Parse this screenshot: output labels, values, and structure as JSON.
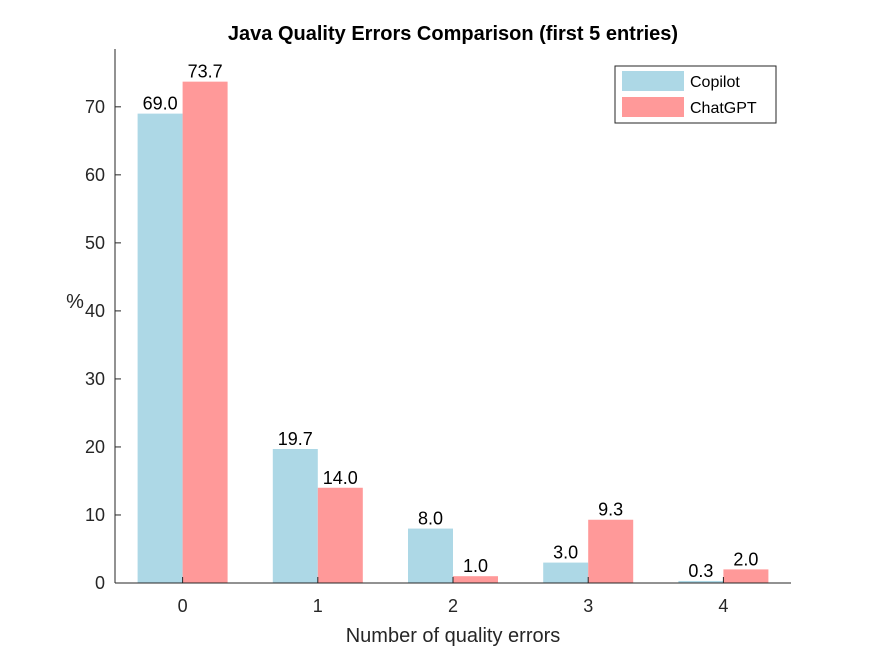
{
  "chart_data": {
    "type": "bar",
    "title": "Java Quality Errors Comparison (first 5 entries)",
    "xlabel": "Number of quality errors",
    "ylabel": "%",
    "categories": [
      "0",
      "1",
      "2",
      "3",
      "4"
    ],
    "series": [
      {
        "name": "Copilot",
        "values": [
          69.0,
          19.7,
          8.0,
          3.0,
          0.3
        ],
        "labels": [
          "69.0",
          "19.7",
          "8.0",
          "3.0",
          "0.3"
        ],
        "color": "#ADD8E6"
      },
      {
        "name": "ChatGPT",
        "values": [
          73.7,
          14.0,
          1.0,
          9.3,
          2.0
        ],
        "labels": [
          "73.7",
          "14.0",
          "1.0",
          "9.3",
          "2.0"
        ],
        "color": "#FF9999"
      }
    ],
    "ylim": [
      0,
      78.5
    ],
    "yticks": [
      "0",
      "10",
      "20",
      "30",
      "40",
      "50",
      "60",
      "70"
    ],
    "grid": false,
    "legend_position": "top-right"
  }
}
